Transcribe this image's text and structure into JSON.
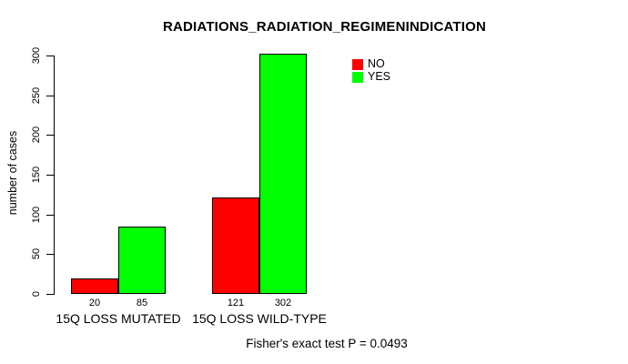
{
  "chart_data": {
    "type": "bar",
    "title": "RADIATIONS_RADIATION_REGIMENINDICATION",
    "xlabel": "",
    "ylabel": "number of cases",
    "ylim": [
      0,
      300
    ],
    "yticks": [
      0,
      50,
      100,
      150,
      200,
      250,
      300
    ],
    "grid": false,
    "bar_style": "grouped",
    "categories": [
      "15Q LOSS MUTATED",
      "15Q LOSS WILD-TYPE"
    ],
    "series": [
      {
        "name": "NO",
        "color": "#ff0000",
        "values": [
          20,
          121
        ]
      },
      {
        "name": "YES",
        "color": "#00ff00",
        "values": [
          85,
          302
        ]
      }
    ],
    "bar_value_labels": [
      [
        "20",
        "85"
      ],
      [
        "121",
        "302"
      ]
    ],
    "legend": {
      "position": "top-right-inside",
      "items": [
        {
          "label": "NO",
          "color": "#ff0000"
        },
        {
          "label": "YES",
          "color": "#00ff00"
        }
      ]
    },
    "annotation": "Fisher's exact test P = 0.0493"
  },
  "colors": {
    "background": "#ffffff",
    "axis": "#000000",
    "text": "#000000",
    "bar_border": "#000000"
  }
}
